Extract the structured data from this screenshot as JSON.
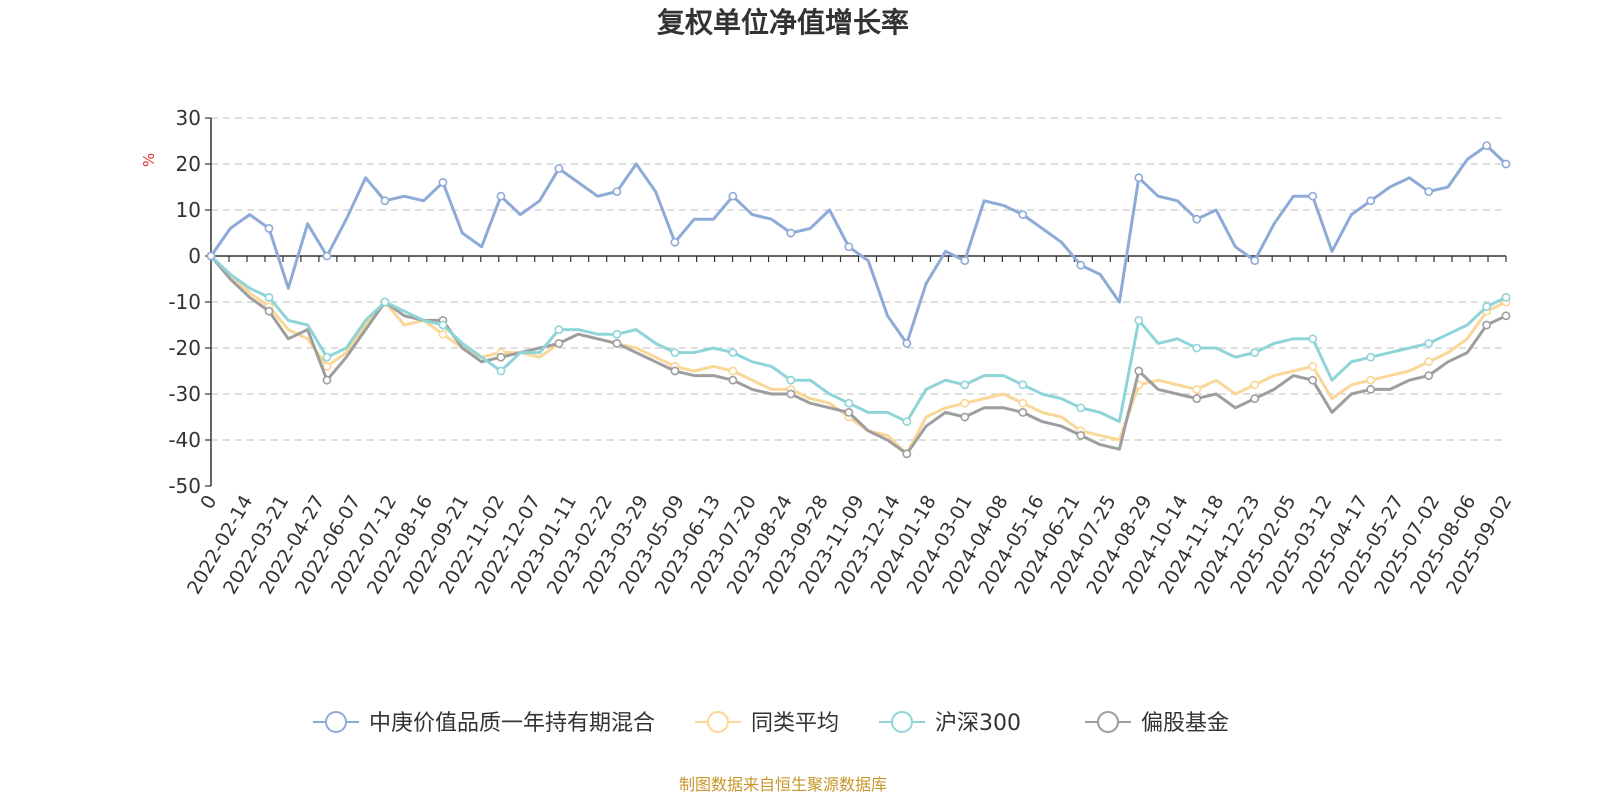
{
  "chart_data": {
    "type": "line",
    "title": "复权单位净值增长率",
    "ylabel": "%",
    "ylim": [
      -50,
      30
    ],
    "y_ticks": [
      30,
      20,
      10,
      0,
      -10,
      -20,
      -30,
      -40,
      -50
    ],
    "x_tick_labels": [
      "0",
      "2022-02-14",
      "2022-03-21",
      "2022-04-27",
      "2022-06-07",
      "2022-07-12",
      "2022-08-16",
      "2022-09-21",
      "2022-11-02",
      "2022-12-07",
      "2023-01-11",
      "2023-02-22",
      "2023-03-29",
      "2023-05-09",
      "2023-06-13",
      "2023-07-20",
      "2023-08-24",
      "2023-09-28",
      "2023-11-09",
      "2023-12-14",
      "2024-01-18",
      "2024-03-01",
      "2024-04-08",
      "2024-05-16",
      "2024-06-21",
      "2024-07-25",
      "2024-08-29",
      "2024-10-14",
      "2024-11-18",
      "2024-12-23",
      "2025-02-05",
      "2025-03-12",
      "2025-04-17",
      "2025-05-27",
      "2025-07-02",
      "2025-08-06",
      "2025-09-02"
    ],
    "grid": true,
    "legend_position": "bottom",
    "source_text": "制图数据来自恒生聚源数据库",
    "series": [
      {
        "name": "中庚价值品质一年持有期混合",
        "color": "#8eaad8",
        "values": [
          0,
          6,
          9,
          6,
          -7,
          7,
          0,
          8,
          17,
          12,
          13,
          12,
          16,
          5,
          2,
          13,
          9,
          12,
          19,
          16,
          13,
          14,
          20,
          14,
          3,
          8,
          8,
          13,
          9,
          8,
          5,
          6,
          10,
          2,
          -1,
          -13,
          -19,
          -6,
          1,
          -1,
          12,
          11,
          9,
          6,
          3,
          -2,
          -4,
          -10,
          17,
          13,
          12,
          8,
          10,
          2,
          -1,
          7,
          13,
          13,
          1,
          9,
          12,
          15,
          17,
          14,
          15,
          21,
          24,
          20
        ]
      },
      {
        "name": "同类平均",
        "color": "#fad797",
        "values": [
          0,
          -4,
          -8,
          -11,
          -16,
          -18,
          -24,
          -21,
          -15,
          -10,
          -15,
          -14,
          -17,
          -20,
          -22,
          -21,
          -21,
          -22,
          -19,
          -17,
          -18,
          -19,
          -20,
          -22,
          -24,
          -25,
          -24,
          -25,
          -27,
          -29,
          -29,
          -31,
          -32,
          -35,
          -38,
          -39,
          -43,
          -35,
          -33,
          -32,
          -31,
          -30,
          -32,
          -34,
          -35,
          -38,
          -39,
          -40,
          -28,
          -27,
          -28,
          -29,
          -27,
          -30,
          -28,
          -26,
          -25,
          -24,
          -31,
          -28,
          -27,
          -26,
          -25,
          -23,
          -21,
          -18,
          -12,
          -10
        ]
      },
      {
        "name": "沪深300",
        "color": "#8fd5d8",
        "values": [
          0,
          -4,
          -7,
          -9,
          -14,
          -15,
          -22,
          -20,
          -14,
          -10,
          -12,
          -14,
          -15,
          -19,
          -22,
          -25,
          -21,
          -21,
          -16,
          -16,
          -17,
          -17,
          -16,
          -19,
          -21,
          -21,
          -20,
          -21,
          -23,
          -24,
          -27,
          -27,
          -30,
          -32,
          -34,
          -34,
          -36,
          -29,
          -27,
          -28,
          -26,
          -26,
          -28,
          -30,
          -31,
          -33,
          -34,
          -36,
          -14,
          -19,
          -18,
          -20,
          -20,
          -22,
          -21,
          -19,
          -18,
          -18,
          -27,
          -23,
          -22,
          -21,
          -20,
          -19,
          -17,
          -15,
          -11,
          -9
        ]
      },
      {
        "name": "偏股基金",
        "color": "#9e9e9e",
        "values": [
          0,
          -5,
          -9,
          -12,
          -18,
          -16,
          -27,
          -22,
          -16,
          -10,
          -13,
          -14,
          -14,
          -20,
          -23,
          -22,
          -21,
          -20,
          -19,
          -17,
          -18,
          -19,
          -21,
          -23,
          -25,
          -26,
          -26,
          -27,
          -29,
          -30,
          -30,
          -32,
          -33,
          -34,
          -38,
          -40,
          -43,
          -37,
          -34,
          -35,
          -33,
          -33,
          -34,
          -36,
          -37,
          -39,
          -41,
          -42,
          -25,
          -29,
          -30,
          -31,
          -30,
          -33,
          -31,
          -29,
          -26,
          -27,
          -34,
          -30,
          -29,
          -29,
          -27,
          -26,
          -23,
          -21,
          -15,
          -13
        ]
      }
    ]
  }
}
